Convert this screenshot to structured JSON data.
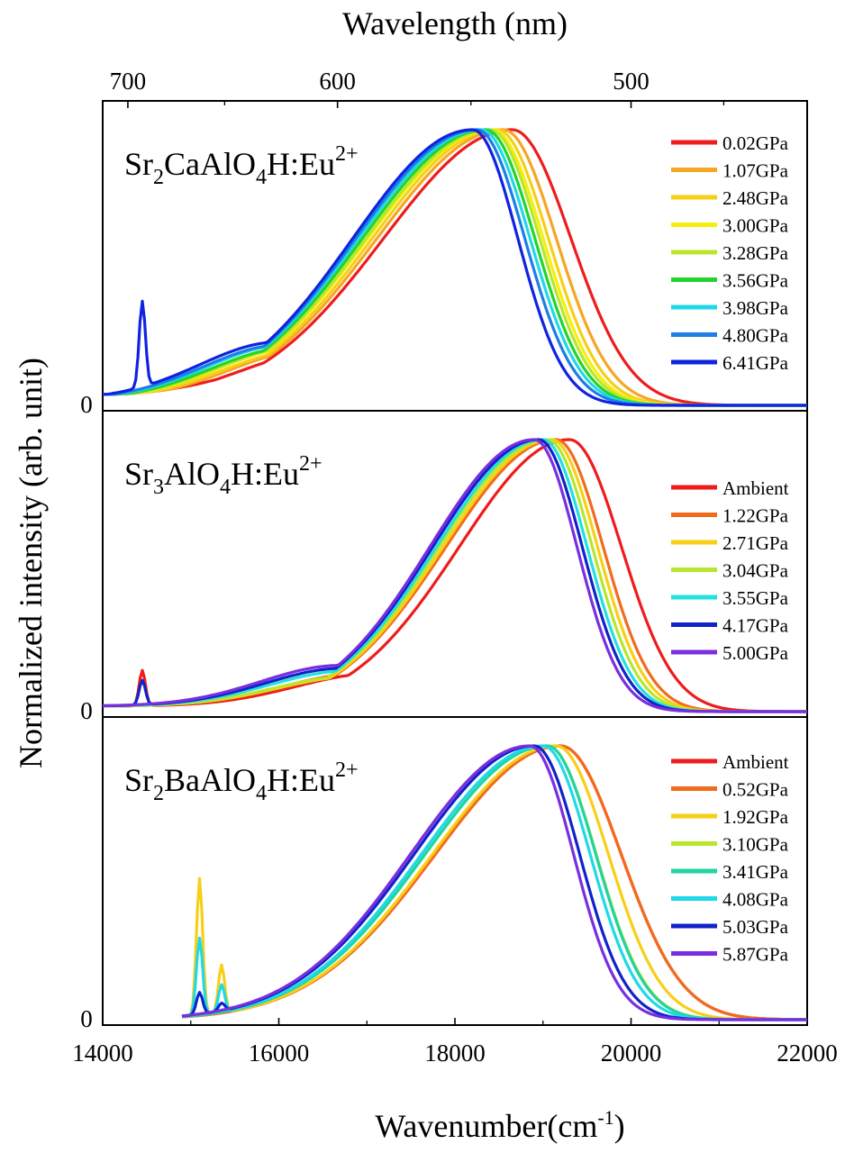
{
  "chart_data": {
    "type": "line",
    "x_top_label": "Wavelength (nm)",
    "x_top_ticks": [
      700,
      600,
      500
    ],
    "x_bottom_label": "Wavenumber(cm",
    "x_bottom_label_sup": "-1",
    "x_bottom_label_end": ")",
    "x_ticks": [
      14000,
      16000,
      18000,
      20000,
      22000
    ],
    "xlim": [
      14000,
      22000
    ],
    "ylabel": "Normalized intensity (arb. unit)",
    "zero_label": "0",
    "panels": [
      {
        "title_parts": [
          "Sr",
          "2",
          "CaAlO",
          "4",
          "H:Eu",
          "2+"
        ],
        "series": [
          {
            "name": "0.02GPa",
            "color": "#ee1c1c",
            "peak": 18650,
            "left_width": 1750,
            "right_width": 700,
            "shoulder": 0.17,
            "spike": null
          },
          {
            "name": "1.07GPa",
            "color": "#f5a623",
            "peak": 18550,
            "left_width": 1720,
            "right_width": 630,
            "shoulder": 0.18,
            "spike": null
          },
          {
            "name": "2.48GPa",
            "color": "#f7cf16",
            "peak": 18480,
            "left_width": 1700,
            "right_width": 610,
            "shoulder": 0.18,
            "spike": null
          },
          {
            "name": "3.00GPa",
            "color": "#f5ef0a",
            "peak": 18430,
            "left_width": 1700,
            "right_width": 600,
            "shoulder": 0.19,
            "spike": null
          },
          {
            "name": "3.28GPa",
            "color": "#b8e62d",
            "peak": 18400,
            "left_width": 1690,
            "right_width": 590,
            "shoulder": 0.19,
            "spike": null
          },
          {
            "name": "3.56GPa",
            "color": "#22d42c",
            "peak": 18350,
            "left_width": 1680,
            "right_width": 585,
            "shoulder": 0.19,
            "spike": null
          },
          {
            "name": "3.98GPa",
            "color": "#1fd9e8",
            "peak": 18300,
            "left_width": 1670,
            "right_width": 580,
            "shoulder": 0.2,
            "spike": null
          },
          {
            "name": "4.80GPa",
            "color": "#1c7ee6",
            "peak": 18250,
            "left_width": 1650,
            "right_width": 570,
            "shoulder": 0.2,
            "spike": null
          },
          {
            "name": "6.41GPa",
            "color": "#0f23e0",
            "peak": 18200,
            "left_width": 1630,
            "right_width": 540,
            "shoulder": 0.21,
            "spike": 0.31
          }
        ]
      },
      {
        "title_parts": [
          "Sr",
          "3",
          "AlO",
          "4",
          "H:Eu",
          "2+"
        ],
        "series": [
          {
            "name": "Ambient",
            "color": "#ee1c1c",
            "peak": 19300,
            "left_width": 1500,
            "right_width": 620,
            "shoulder": 0.12,
            "spike": 0.13
          },
          {
            "name": "1.22GPa",
            "color": "#f26b1d",
            "peak": 19150,
            "left_width": 1500,
            "right_width": 560,
            "shoulder": 0.12,
            "spike": null
          },
          {
            "name": "2.71GPa",
            "color": "#f7cf16",
            "peak": 19100,
            "left_width": 1480,
            "right_width": 545,
            "shoulder": 0.11,
            "spike": null
          },
          {
            "name": "3.04GPa",
            "color": "#b8e62d",
            "peak": 19050,
            "left_width": 1470,
            "right_width": 535,
            "shoulder": 0.11,
            "spike": null
          },
          {
            "name": "3.55GPa",
            "color": "#22e0e0",
            "peak": 19000,
            "left_width": 1450,
            "right_width": 525,
            "shoulder": 0.13,
            "spike": null
          },
          {
            "name": "4.17GPa",
            "color": "#0f23c8",
            "peak": 18950,
            "left_width": 1440,
            "right_width": 520,
            "shoulder": 0.14,
            "spike": 0.09
          },
          {
            "name": "5.00GPa",
            "color": "#7a2ee0",
            "peak": 18900,
            "left_width": 1420,
            "right_width": 510,
            "shoulder": 0.15,
            "spike": null
          }
        ]
      },
      {
        "title_parts": [
          "Sr",
          "2",
          "BaAlO",
          "4",
          "H:Eu",
          "2+"
        ],
        "series": [
          {
            "name": "Ambient",
            "color": "#ee1c1c",
            "peak": 19200,
            "left_width": 1700,
            "right_width": 720,
            "shoulder": 0.0,
            "spike": null
          },
          {
            "name": "0.52GPa",
            "color": "#f26b1d",
            "peak": 19200,
            "left_width": 1700,
            "right_width": 720,
            "shoulder": 0.0,
            "spike": null
          },
          {
            "name": "1.92GPa",
            "color": "#f7cf16",
            "peak": 19150,
            "left_width": 1680,
            "right_width": 620,
            "shoulder": 0.0,
            "spike": 0.5
          },
          {
            "name": "3.10GPa",
            "color": "#b8e62d",
            "peak": 19050,
            "left_width": 1660,
            "right_width": 580,
            "shoulder": 0.0,
            "spike": null
          },
          {
            "name": "3.41GPa",
            "color": "#22d4a0",
            "peak": 19050,
            "left_width": 1660,
            "right_width": 575,
            "shoulder": 0.0,
            "spike": null
          },
          {
            "name": "4.08GPa",
            "color": "#1fd9e8",
            "peak": 19000,
            "left_width": 1650,
            "right_width": 560,
            "shoulder": 0.0,
            "spike": 0.28
          },
          {
            "name": "5.03GPa",
            "color": "#0f23c8",
            "peak": 18900,
            "left_width": 1630,
            "right_width": 540,
            "shoulder": 0.0,
            "spike": 0.08
          },
          {
            "name": "5.87GPa",
            "color": "#7a2ee0",
            "peak": 18850,
            "left_width": 1620,
            "right_width": 520,
            "shoulder": 0.0,
            "spike": null
          }
        ]
      }
    ]
  }
}
